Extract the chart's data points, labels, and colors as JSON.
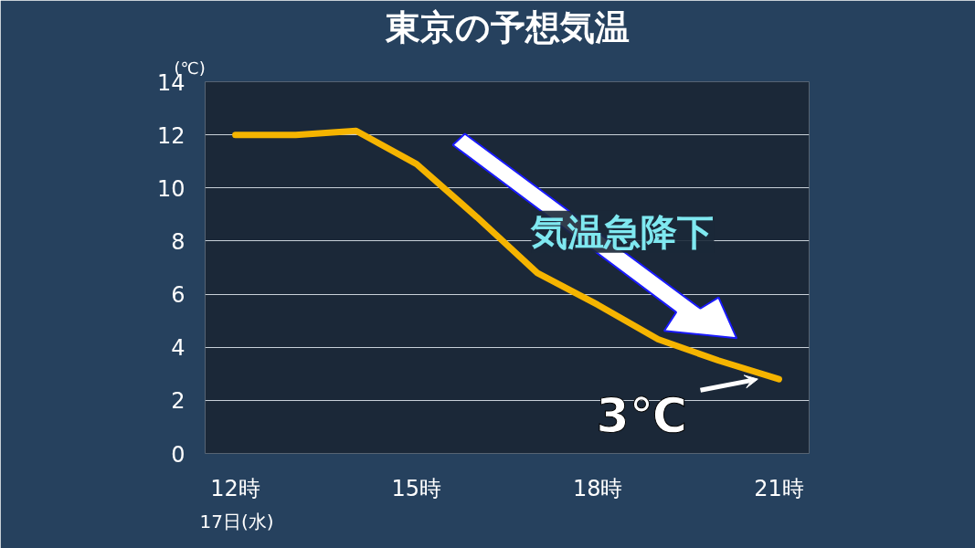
{
  "chart_data": {
    "type": "line",
    "title": "東京の予想気温",
    "ylabel": "(℃)",
    "x": [
      12,
      13,
      14,
      15,
      16,
      17,
      18,
      19,
      20,
      21
    ],
    "series": [
      {
        "color": "#f5b400",
        "values": [
          12.0,
          12.0,
          12.15,
          10.9,
          8.9,
          6.8,
          5.6,
          4.3,
          3.5,
          2.8
        ]
      }
    ],
    "xlim": [
      11.5,
      21.5
    ],
    "xticks": [
      {
        "value": 12,
        "label": "12時"
      },
      {
        "value": 15,
        "label": "15時"
      },
      {
        "value": 18,
        "label": "18時"
      },
      {
        "value": 21,
        "label": "21時"
      }
    ],
    "ylim": [
      0,
      14
    ],
    "yticks": [
      0,
      2,
      4,
      6,
      8,
      10,
      12,
      14
    ],
    "grid": "y",
    "marker": "none",
    "line_style": "solid",
    "annotations": [
      "17日(水)",
      "気温急降下",
      {
        "text": "3℃",
        "x": 21,
        "y": 2.8
      }
    ]
  }
}
